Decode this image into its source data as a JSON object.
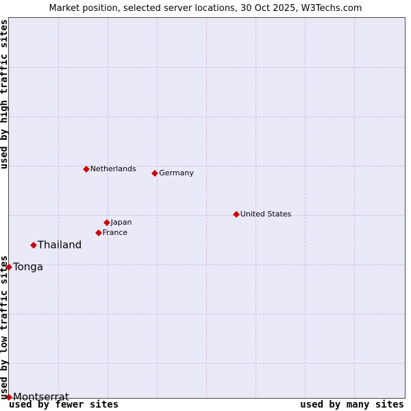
{
  "title": "Market position, selected server locations, 30 Oct 2025, W3Techs.com",
  "axes": {
    "y_top": "used by high traffic sites",
    "y_bottom": "used by low traffic sites",
    "x_left": "used by fewer sites",
    "x_right": "used by many sites"
  },
  "chart_data": {
    "type": "scatter",
    "title": "Market position, selected server locations, 30 Oct 2025, W3Techs.com",
    "x_axis": {
      "left_label": "used by fewer sites",
      "right_label": "used by many sites",
      "scale": "qualitative (popularity: fewer -> many sites)"
    },
    "y_axis": {
      "top_label": "used by high traffic sites",
      "bottom_label": "used by low traffic sites",
      "scale": "qualitative (traffic level: low at bottom -> high at top)"
    },
    "grid": true,
    "legend": "none",
    "marker_shape": "diamond",
    "marker_color": "#cc0000",
    "background_color": "#e9e9f8",
    "points": [
      {
        "label": "Netherlands",
        "x_pct": 19.5,
        "y_pct": 39.9,
        "emphasis": "small"
      },
      {
        "label": "Germany",
        "x_pct": 36.9,
        "y_pct": 40.9,
        "emphasis": "small"
      },
      {
        "label": "United States",
        "x_pct": 57.4,
        "y_pct": 51.7,
        "emphasis": "small"
      },
      {
        "label": "Japan",
        "x_pct": 24.7,
        "y_pct": 53.9,
        "emphasis": "small"
      },
      {
        "label": "France",
        "x_pct": 22.6,
        "y_pct": 56.6,
        "emphasis": "small"
      },
      {
        "label": "Thailand",
        "x_pct": 6.2,
        "y_pct": 59.8,
        "emphasis": "large"
      },
      {
        "label": "Tonga",
        "x_pct": 0.0,
        "y_pct": 65.5,
        "emphasis": "large"
      },
      {
        "label": "Montserrat",
        "x_pct": 0.0,
        "y_pct": 99.8,
        "emphasis": "large"
      }
    ]
  }
}
